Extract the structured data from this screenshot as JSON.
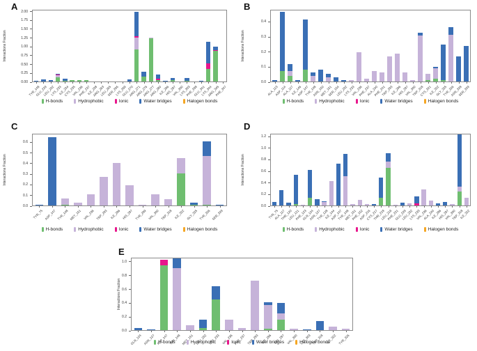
{
  "figure": {
    "background": "#ffffff",
    "ylabel": "Interactions Fraction"
  },
  "legend": {
    "items": [
      {
        "label": "H-bonds",
        "color": "#6fbe70"
      },
      {
        "label": "Hydrophobic",
        "color": "#c6b3d9"
      },
      {
        "label": "Ionic",
        "color": "#e8168c"
      },
      {
        "label": "Water bridges",
        "color": "#3a6fb5"
      },
      {
        "label": "Halogen bonds",
        "color": "#f5a623"
      }
    ]
  },
  "chart_data": [
    {
      "panel": "A",
      "type": "bar",
      "stacked": true,
      "ylabel": "Interactions Fraction",
      "ylim": [
        0,
        2.05
      ],
      "yticks": [
        "0.00",
        "0.25",
        "0.50",
        "0.75",
        "1.00",
        "1.25",
        "1.50",
        "1.75",
        "2.00"
      ],
      "categories": [
        "TYR_148",
        "GLU_229",
        "LEU_232",
        "LYS_233",
        "ILE_234",
        "CYS_235",
        "VAL_236",
        "PHE_237",
        "ILE_238",
        "ARG_263",
        "LEU_265",
        "SER_266",
        "LYS_269",
        "GLU_270",
        "ARG_271",
        "ARG_276",
        "ARG_277",
        "ARG_280",
        "ILE_296",
        "HIS_297",
        "VAL_300",
        "LYS_303",
        "PHE_338",
        "GLU_341",
        "LYS_344",
        "ARG_345",
        "PHE_347"
      ],
      "series": [
        {
          "name": "H-bonds",
          "values": [
            0,
            0,
            0,
            0.13,
            0.02,
            0.04,
            0.05,
            0.05,
            0.01,
            0.01,
            0,
            0.01,
            0.01,
            0,
            0.93,
            0.14,
            1.25,
            0.05,
            0,
            0.04,
            0.01,
            0.02,
            0.01,
            0,
            0.37,
            0.89,
            0
          ]
        },
        {
          "name": "Hydrophobic",
          "values": [
            0,
            0,
            0,
            0.06,
            0,
            0,
            0,
            0,
            0,
            0,
            0,
            0,
            0,
            0,
            0.34,
            0,
            0.02,
            0,
            0,
            0,
            0,
            0,
            0,
            0,
            0,
            0,
            0
          ]
        },
        {
          "name": "Ionic",
          "values": [
            0,
            0,
            0,
            0.02,
            0,
            0,
            0,
            0,
            0,
            0,
            0,
            0,
            0,
            0,
            0.03,
            0,
            0,
            0.03,
            0,
            0,
            0,
            0,
            0,
            0,
            0.15,
            0.02,
            0
          ]
        },
        {
          "name": "Water bridges",
          "values": [
            0.02,
            0.06,
            0.04,
            0.02,
            0.06,
            0,
            0,
            0,
            0,
            0,
            0.01,
            0,
            0,
            0.06,
            0.72,
            0.15,
            0,
            0.12,
            0.03,
            0.07,
            0,
            0.09,
            0,
            0.03,
            0.63,
            0.1,
            0.01
          ]
        },
        {
          "name": "Halogen bonds",
          "values": [
            0,
            0,
            0,
            0,
            0,
            0,
            0,
            0,
            0,
            0,
            0,
            0,
            0,
            0,
            0,
            0,
            0,
            0,
            0,
            0,
            0,
            0,
            0,
            0,
            0,
            0,
            0
          ]
        }
      ]
    },
    {
      "panel": "B",
      "type": "bar",
      "stacked": true,
      "ylabel": "Interactions Fraction",
      "ylim": [
        0,
        0.48
      ],
      "yticks": [
        "0.0",
        "0.1",
        "0.2",
        "0.3",
        "0.4"
      ],
      "categories": [
        "ALA_113",
        "ASP_114",
        "ALA_117",
        "ILE_146",
        "ASP_147",
        "TYR_148",
        "ASN_150",
        "MET_151",
        "SER_154",
        "LEU_232",
        "LYS_233",
        "VAL_236",
        "PHE_237",
        "ALA_240",
        "PHE_241",
        "TRP_293",
        "ILE_296",
        "HIS_297",
        "VAL_300",
        "TRP_318",
        "CYS_321",
        "ILE_322",
        "GLY_325",
        "TYR_326",
        "ASN_328",
        "SER_329"
      ],
      "series": [
        {
          "name": "H-bonds",
          "values": [
            0,
            0.07,
            0.04,
            0,
            0.08,
            0,
            0,
            0,
            0,
            0,
            0,
            0,
            0,
            0,
            0,
            0,
            0,
            0,
            0,
            0,
            0.01,
            0.02,
            0.01,
            0,
            0,
            0
          ]
        },
        {
          "name": "Hydrophobic",
          "values": [
            0,
            0,
            0.03,
            0,
            0,
            0.04,
            0,
            0.03,
            0,
            0,
            0.01,
            0.2,
            0.02,
            0.07,
            0.06,
            0.17,
            0.19,
            0.06,
            0.01,
            0.31,
            0.04,
            0.07,
            0,
            0.315,
            0,
            0
          ]
        },
        {
          "name": "Ionic",
          "values": [
            0,
            0,
            0,
            0,
            0,
            0,
            0,
            0,
            0,
            0,
            0,
            0,
            0,
            0,
            0,
            0,
            0,
            0,
            0,
            0,
            0,
            0,
            0,
            0,
            0,
            0
          ]
        },
        {
          "name": "Water bridges",
          "values": [
            0.01,
            0.4,
            0.05,
            0.01,
            0.34,
            0.02,
            0.08,
            0.02,
            0.03,
            0.01,
            0,
            0,
            0,
            0,
            0,
            0,
            0,
            0,
            0,
            0.02,
            0,
            0.01,
            0.24,
            0.05,
            0.17,
            0.24
          ]
        },
        {
          "name": "Halogen bonds",
          "values": [
            0,
            0,
            0,
            0,
            0,
            0,
            0,
            0,
            0,
            0,
            0,
            0,
            0,
            0,
            0,
            0,
            0,
            0,
            0,
            0,
            0,
            0,
            0,
            0,
            0,
            0
          ]
        }
      ]
    },
    {
      "panel": "C",
      "type": "bar",
      "stacked": true,
      "ylabel": "Interactions Fraction",
      "ylim": [
        0,
        0.68
      ],
      "yticks": [
        "0.0",
        "0.1",
        "0.2",
        "0.3",
        "0.4",
        "0.5",
        "0.6"
      ],
      "categories": [
        "TYR_75",
        "ASP_147",
        "TYR_148",
        "MET_151",
        "VAL_236",
        "TRP_293",
        "ILE_296",
        "HIS_297",
        "TYR_299",
        "VAL_300",
        "TRP_318",
        "ILE_322",
        "GLY_325",
        "TYR_326",
        "SER_329"
      ],
      "series": [
        {
          "name": "H-bonds",
          "values": [
            0,
            0,
            0.01,
            0,
            0,
            0,
            0,
            0,
            0,
            0,
            0,
            0.305,
            0.005,
            0.01,
            0
          ]
        },
        {
          "name": "Hydrophobic",
          "values": [
            0,
            0,
            0.06,
            0.03,
            0.105,
            0.275,
            0.405,
            0.195,
            0.01,
            0.105,
            0.06,
            0.15,
            0,
            0.465,
            0
          ]
        },
        {
          "name": "Ionic",
          "values": [
            0,
            0,
            0,
            0,
            0,
            0,
            0,
            0,
            0,
            0,
            0,
            0,
            0,
            0,
            0
          ]
        },
        {
          "name": "Water bridges",
          "values": [
            0.01,
            0.655,
            0,
            0,
            0,
            0,
            0,
            0,
            0,
            0,
            0,
            0,
            0.025,
            0.14,
            0.01
          ]
        },
        {
          "name": "Halogen bonds",
          "values": [
            0,
            0,
            0,
            0,
            0,
            0,
            0,
            0,
            0,
            0,
            0,
            0,
            0,
            0,
            0
          ]
        }
      ]
    },
    {
      "panel": "D",
      "type": "bar",
      "stacked": true,
      "ylabel": "Interactions Fraction",
      "ylim": [
        0,
        1.25
      ],
      "yticks": [
        "0.0",
        "0.2",
        "0.4",
        "0.6",
        "0.8",
        "1.0",
        "1.2"
      ],
      "categories": [
        "TYR_75",
        "ALA_117",
        "THR_120",
        "LEU_121",
        "PHE_123",
        "GLN_124",
        "ASN_127",
        "TYR_128",
        "ILE_144",
        "ASP_147",
        "TYR_148",
        "MET_151",
        "PHE_152",
        "ASP_216",
        "CYS_217",
        "THR_218",
        "LEU_219",
        "PHE_221",
        "GLU_229",
        "LEU_232",
        "LYS_233",
        "VAL_236",
        "ALA_240",
        "ILE_296",
        "HIS_297",
        "VAL_300",
        "TRP_318",
        "ILE_322"
      ],
      "series": [
        {
          "name": "H-bonds",
          "values": [
            0,
            0,
            0,
            0.03,
            0,
            0.14,
            0,
            0,
            0,
            0,
            0,
            0,
            0,
            0,
            0,
            0.13,
            0.66,
            0,
            0,
            0,
            0,
            0,
            0,
            0,
            0,
            0,
            0.25,
            0
          ]
        },
        {
          "name": "Hydrophobic",
          "values": [
            0,
            0,
            0,
            0,
            0.015,
            0,
            0,
            0.06,
            0.435,
            0,
            0.51,
            0.025,
            0.095,
            0.03,
            0,
            0,
            0.115,
            0.015,
            0,
            0.035,
            0,
            0.285,
            0.08,
            0,
            0,
            0.02,
            0.085,
            0.13
          ]
        },
        {
          "name": "Ionic",
          "values": [
            0,
            0,
            0,
            0,
            0,
            0,
            0,
            0,
            0,
            0,
            0,
            0,
            0,
            0,
            0,
            0,
            0,
            0,
            0,
            0,
            0.035,
            0,
            0,
            0,
            0,
            0,
            0,
            0
          ]
        },
        {
          "name": "Water bridges",
          "values": [
            0.06,
            0.27,
            0.05,
            0.51,
            0,
            0.48,
            0.11,
            0.015,
            0,
            0.73,
            0.4,
            0,
            0,
            0,
            0.03,
            0.355,
            0.145,
            0,
            0.05,
            0,
            0.125,
            0,
            0,
            0.035,
            0.06,
            0,
            0.915,
            0
          ]
        },
        {
          "name": "Halogen bonds",
          "values": [
            0,
            0,
            0,
            0,
            0,
            0,
            0,
            0,
            0,
            0,
            0,
            0,
            0,
            0,
            0,
            0,
            0,
            0,
            0,
            0,
            0,
            0,
            0,
            0,
            0,
            0,
            0,
            0
          ]
        }
      ]
    },
    {
      "panel": "E",
      "type": "bar",
      "stacked": true,
      "ylabel": "Interactions Fraction",
      "ylim": [
        0,
        1.06
      ],
      "yticks": [
        "0.0",
        "0.2",
        "0.4",
        "0.6",
        "0.8",
        "1.0"
      ],
      "categories": [
        "GLN_124",
        "ASN_127",
        "ASP_147",
        "TYR_148",
        "MET_151",
        "LEU_232",
        "LYS_233",
        "VAL_236",
        "PHE_237",
        "TRP_293",
        "ILE_296",
        "HIS_297",
        "VAL_300",
        "LYS_303",
        "TRP_318",
        "ILE_322",
        "TYR_326"
      ],
      "series": [
        {
          "name": "H-bonds",
          "values": [
            0,
            0,
            0.96,
            0,
            0,
            0.03,
            0.45,
            0,
            0,
            0,
            0.02,
            0.15,
            0,
            0,
            0,
            0,
            0
          ]
        },
        {
          "name": "Hydrophobic",
          "values": [
            0,
            0,
            0,
            0.92,
            0.07,
            0,
            0,
            0.15,
            0.03,
            0.73,
            0.35,
            0.1,
            0.02,
            0,
            0,
            0.05,
            0.02
          ]
        },
        {
          "name": "Ionic",
          "values": [
            0,
            0,
            0.08,
            0,
            0,
            0,
            0,
            0,
            0,
            0,
            0,
            0,
            0,
            0,
            0,
            0,
            0
          ]
        },
        {
          "name": "Water bridges",
          "values": [
            0.03,
            0.01,
            0,
            0.14,
            0,
            0.12,
            0.2,
            0,
            0,
            0,
            0.04,
            0.15,
            0,
            0.01,
            0.13,
            0,
            0
          ]
        },
        {
          "name": "Halogen bonds",
          "values": [
            0,
            0,
            0,
            0,
            0,
            0,
            0,
            0,
            0,
            0,
            0,
            0,
            0,
            0,
            0,
            0,
            0
          ]
        }
      ]
    }
  ]
}
